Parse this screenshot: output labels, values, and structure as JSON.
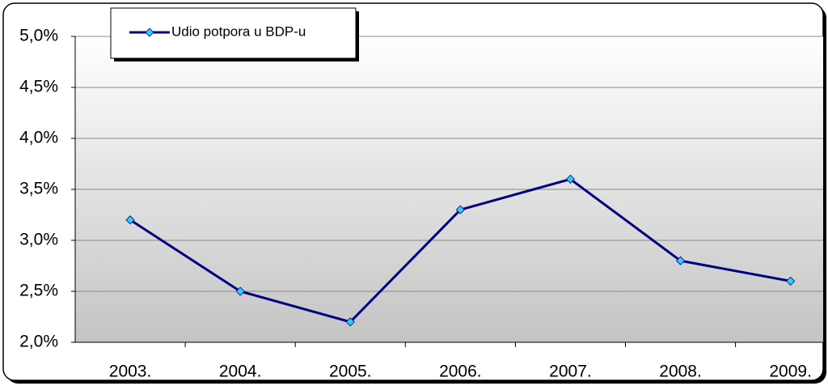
{
  "chart_data": {
    "type": "line",
    "categories": [
      "2003.",
      "2004.",
      "2005.",
      "2006.",
      "2007.",
      "2008.",
      "2009."
    ],
    "series": [
      {
        "name": "Udio potpora u BDP-u",
        "color": "#000080",
        "marker_color": "#33ccff",
        "values": [
          3.2,
          2.5,
          2.2,
          3.3,
          3.6,
          2.8,
          2.6
        ]
      }
    ],
    "ylim": [
      2.0,
      5.0
    ],
    "yticks": [
      {
        "value": 2.0,
        "label": "2,0%"
      },
      {
        "value": 2.5,
        "label": "2,5%"
      },
      {
        "value": 3.0,
        "label": "3,0%"
      },
      {
        "value": 3.5,
        "label": "3,5%"
      },
      {
        "value": 4.0,
        "label": "4,0%"
      },
      {
        "value": 4.5,
        "label": "4,5%"
      },
      {
        "value": 5.0,
        "label": "5,0%"
      }
    ],
    "grid": true
  }
}
